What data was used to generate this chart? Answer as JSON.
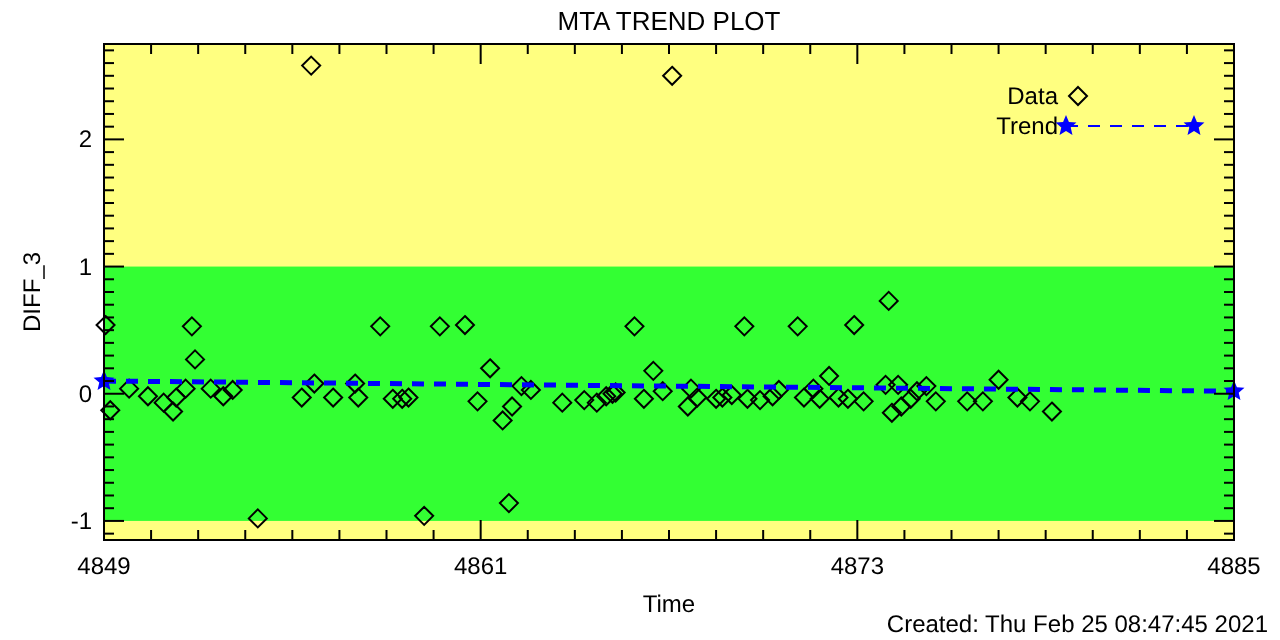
{
  "chart_data": {
    "type": "scatter",
    "title": "MTA TREND PLOT",
    "xlabel": "Time",
    "ylabel": "DIFF_3",
    "xlim": [
      4849,
      4885
    ],
    "xticks": [
      4849,
      {
        "value": 4850.5,
        "label": null
      },
      {
        "value": 4852,
        "label": null
      },
      {
        "value": 4853.5,
        "label": null
      },
      {
        "value": 4855,
        "label": null
      },
      {
        "value": 4856.5,
        "label": null
      },
      {
        "value": 4858,
        "label": null
      },
      {
        "value": 4859.5,
        "label": null
      },
      4861,
      {
        "value": 4862.5,
        "label": null
      },
      {
        "value": 4864,
        "label": null
      },
      {
        "value": 4865.5,
        "label": null
      },
      {
        "value": 4867,
        "label": null
      },
      {
        "value": 4868.5,
        "label": null
      },
      {
        "value": 4870,
        "label": null
      },
      {
        "value": 4871.5,
        "label": null
      },
      4873,
      {
        "value": 4874.5,
        "label": null
      },
      {
        "value": 4876,
        "label": null
      },
      {
        "value": 4877.5,
        "label": null
      },
      {
        "value": 4879,
        "label": null
      },
      {
        "value": 4880.5,
        "label": null
      },
      {
        "value": 4882,
        "label": null
      },
      {
        "value": 4883.5,
        "label": null
      },
      4885
    ],
    "ylim": [
      -1.15,
      2.75
    ],
    "yticks": [
      {
        "value": -1.1,
        "label": null
      },
      -1,
      {
        "value": -0.9,
        "label": null
      },
      {
        "value": -0.8,
        "label": null
      },
      {
        "value": -0.7,
        "label": null
      },
      {
        "value": -0.6,
        "label": null
      },
      {
        "value": -0.5,
        "label": null
      },
      {
        "value": -0.4,
        "label": null
      },
      {
        "value": -0.3,
        "label": null
      },
      {
        "value": -0.2,
        "label": null
      },
      {
        "value": -0.1,
        "label": null
      },
      0,
      {
        "value": 0.1,
        "label": null
      },
      {
        "value": 0.2,
        "label": null
      },
      {
        "value": 0.3,
        "label": null
      },
      {
        "value": 0.4,
        "label": null
      },
      {
        "value": 0.5,
        "label": null
      },
      {
        "value": 0.6,
        "label": null
      },
      {
        "value": 0.7,
        "label": null
      },
      {
        "value": 0.8,
        "label": null
      },
      {
        "value": 0.9,
        "label": null
      },
      1,
      {
        "value": 1.1,
        "label": null
      },
      {
        "value": 1.2,
        "label": null
      },
      {
        "value": 1.3,
        "label": null
      },
      {
        "value": 1.4,
        "label": null
      },
      {
        "value": 1.5,
        "label": null
      },
      {
        "value": 1.6,
        "label": null
      },
      {
        "value": 1.7,
        "label": null
      },
      {
        "value": 1.8,
        "label": null
      },
      {
        "value": 1.9,
        "label": null
      },
      2,
      {
        "value": 2.1,
        "label": null
      },
      {
        "value": 2.2,
        "label": null
      },
      {
        "value": 2.3,
        "label": null
      },
      {
        "value": 2.4,
        "label": null
      },
      {
        "value": 2.5,
        "label": null
      },
      {
        "value": 2.6,
        "label": null
      },
      {
        "value": 2.7,
        "label": null
      }
    ],
    "grid": false,
    "legend": "top right",
    "bands": [
      {
        "axis": "y",
        "from": -1.15,
        "to": 2.75,
        "color": "#ffff80"
      },
      {
        "axis": "y",
        "from": -1,
        "to": 1,
        "color": "#33ff33"
      }
    ],
    "series": [
      {
        "name": "Data",
        "color": "#000000",
        "marker": "diamond",
        "x": [
          4849.05,
          4849.2,
          4849.8,
          4850.4,
          4850.9,
          4851.2,
          4851.3,
          4851.6,
          4851.8,
          4851.9,
          4852.4,
          4852.8,
          4853.1,
          4853.9,
          4855.3,
          4855.6,
          4855.7,
          4856.3,
          4857.0,
          4857.1,
          4857.8,
          4858.2,
          4858.5,
          4858.7,
          4859.2,
          4859.7,
          4860.5,
          4860.9,
          4861.3,
          4861.7,
          4861.9,
          4862.0,
          4862.3,
          4862.6,
          4863.6,
          4864.3,
          4864.7,
          4865.0,
          4865.2,
          4865.3,
          4865.9,
          4866.2,
          4866.5,
          4866.8,
          4867.1,
          4867.6,
          4867.7,
          4867.9,
          4868.5,
          4868.7,
          4869.0,
          4869.4,
          4869.5,
          4869.9,
          4870.3,
          4870.5,
          4871.1,
          4871.3,
          4871.6,
          4871.8,
          4872.1,
          4872.4,
          4872.7,
          4872.9,
          4873.2,
          4873.9,
          4874.0,
          4874.1,
          4874.3,
          4874.4,
          4874.7,
          4874.9,
          4875.2,
          4875.5,
          4876.5,
          4877.0,
          4877.5,
          4878.1,
          4878.5,
          4879.2
        ],
        "values": [
          0.54,
          -0.13,
          0.04,
          -0.02,
          -0.07,
          -0.14,
          -0.03,
          0.04,
          0.53,
          0.27,
          0.04,
          -0.02,
          0.03,
          -0.98,
          -0.03,
          2.58,
          0.08,
          -0.03,
          0.08,
          -0.03,
          0.53,
          -0.04,
          -0.04,
          -0.03,
          -0.96,
          0.53,
          0.54,
          -0.06,
          0.2,
          -0.21,
          -0.86,
          -0.1,
          0.06,
          0.03,
          -0.07,
          -0.05,
          -0.07,
          -0.02,
          0,
          0.01,
          0.53,
          -0.04,
          0.18,
          0.02,
          2.5,
          -0.1,
          0.04,
          -0.03,
          -0.04,
          -0.03,
          -0.01,
          0.53,
          -0.04,
          -0.05,
          -0.02,
          0.03,
          0.53,
          -0.03,
          0.04,
          -0.04,
          0.14,
          -0.03,
          -0.04,
          0.54,
          -0.06,
          0.07,
          0.73,
          -0.15,
          0.07,
          -0.1,
          -0.04,
          0.02,
          0.06,
          -0.06,
          -0.06,
          -0.06,
          0.11,
          -0.03,
          -0.06,
          -0.14
        ]
      },
      {
        "name": "Trend",
        "type": "line",
        "color": "#0000ff",
        "marker": "star",
        "line_style": "dashed",
        "x": [
          4849,
          4885
        ],
        "values": [
          0.1,
          0.02
        ]
      }
    ],
    "annotations": [
      "Created: Thu Feb 25 08:47:45 2021"
    ]
  }
}
